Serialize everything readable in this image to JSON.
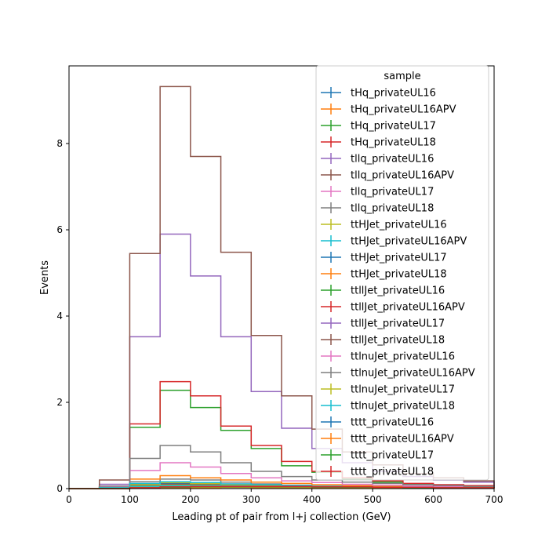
{
  "chart_data": {
    "type": "step-histogram",
    "xlabel": "Leading pt of pair from l+j collection (GeV)",
    "ylabel": "Events",
    "xlim": [
      0,
      700
    ],
    "ylim": [
      0,
      9.8
    ],
    "xticks": [
      "0",
      "100",
      "200",
      "300",
      "400",
      "500",
      "600",
      "700"
    ],
    "yticks": [
      "0",
      "2",
      "4",
      "6",
      "8"
    ],
    "grid": false,
    "legend": {
      "title": "sample",
      "placement": "top-right"
    },
    "bin_edges": [
      0,
      50,
      100,
      150,
      200,
      250,
      300,
      350,
      400,
      450,
      500,
      550,
      600,
      650,
      700
    ],
    "series": [
      {
        "name": "tHq_privateUL16",
        "color": "#1f77b4",
        "values": [
          0,
          0.01,
          0.03,
          0.04,
          0.04,
          0.03,
          0.02,
          0.02,
          0.01,
          0.01,
          0.01,
          0.005,
          0.005,
          0.005
        ]
      },
      {
        "name": "tHq_privateUL16APV",
        "color": "#ff7f0e",
        "values": [
          0,
          0.01,
          0.03,
          0.04,
          0.04,
          0.03,
          0.02,
          0.02,
          0.01,
          0.01,
          0.01,
          0.005,
          0.005,
          0.005
        ]
      },
      {
        "name": "tHq_privateUL17",
        "color": "#2ca02c",
        "values": [
          0,
          0.01,
          0.05,
          0.07,
          0.06,
          0.05,
          0.04,
          0.03,
          0.02,
          0.02,
          0.01,
          0.01,
          0.01,
          0.01
        ]
      },
      {
        "name": "tHq_privateUL18",
        "color": "#d62728",
        "values": [
          0,
          0.01,
          0.08,
          0.1,
          0.09,
          0.07,
          0.05,
          0.04,
          0.03,
          0.02,
          0.02,
          0.01,
          0.01,
          0.01
        ]
      },
      {
        "name": "tllq_privateUL16",
        "color": "#9467bd",
        "values": [
          0,
          0.02,
          0.1,
          0.13,
          0.12,
          0.09,
          0.07,
          0.05,
          0.04,
          0.03,
          0.02,
          0.02,
          0.01,
          0.01
        ]
      },
      {
        "name": "tllq_privateUL16APV",
        "color": "#8c564b",
        "values": [
          0,
          0.02,
          0.08,
          0.11,
          0.1,
          0.08,
          0.06,
          0.05,
          0.03,
          0.03,
          0.02,
          0.02,
          0.01,
          0.01
        ]
      },
      {
        "name": "tllq_privateUL17",
        "color": "#e377c2",
        "values": [
          0,
          0.03,
          0.12,
          0.16,
          0.14,
          0.11,
          0.08,
          0.06,
          0.05,
          0.04,
          0.03,
          0.02,
          0.02,
          0.01
        ]
      },
      {
        "name": "tllq_privateUL18",
        "color": "#7f7f7f",
        "values": [
          0,
          0.04,
          0.16,
          0.22,
          0.2,
          0.15,
          0.11,
          0.08,
          0.06,
          0.05,
          0.04,
          0.03,
          0.02,
          0.02
        ]
      },
      {
        "name": "ttHJet_privateUL16",
        "color": "#bcbd22",
        "values": [
          0,
          0.02,
          0.06,
          0.08,
          0.08,
          0.07,
          0.05,
          0.04,
          0.03,
          0.03,
          0.02,
          0.02,
          0.01,
          0.01
        ]
      },
      {
        "name": "ttHJet_privateUL16APV",
        "color": "#17becf",
        "values": [
          0,
          0.02,
          0.05,
          0.07,
          0.07,
          0.06,
          0.05,
          0.04,
          0.03,
          0.02,
          0.02,
          0.01,
          0.01,
          0.01
        ]
      },
      {
        "name": "ttHJet_privateUL17",
        "color": "#1f77b4",
        "values": [
          0,
          0.03,
          0.1,
          0.13,
          0.12,
          0.1,
          0.08,
          0.06,
          0.05,
          0.04,
          0.03,
          0.02,
          0.02,
          0.02
        ]
      },
      {
        "name": "ttHJet_privateUL18",
        "color": "#ff7f0e",
        "values": [
          0,
          0.04,
          0.22,
          0.3,
          0.25,
          0.2,
          0.15,
          0.12,
          0.09,
          0.07,
          0.05,
          0.04,
          0.03,
          0.03
        ]
      },
      {
        "name": "ttllJet_privateUL16",
        "color": "#2ca02c",
        "values": [
          0,
          0.05,
          1.42,
          2.28,
          1.88,
          1.35,
          0.93,
          0.53,
          0.38,
          0.22,
          0.15,
          0.1,
          0.08,
          0.06
        ]
      },
      {
        "name": "ttllJet_privateUL16APV",
        "color": "#d62728",
        "values": [
          0,
          0.06,
          1.5,
          2.48,
          2.15,
          1.45,
          1.0,
          0.63,
          0.4,
          0.25,
          0.18,
          0.12,
          0.09,
          0.07
        ]
      },
      {
        "name": "ttllJet_privateUL17",
        "color": "#9467bd",
        "values": [
          0,
          0.1,
          3.52,
          5.9,
          4.93,
          3.52,
          2.25,
          1.4,
          0.93,
          0.6,
          0.4,
          0.28,
          0.2,
          0.15
        ]
      },
      {
        "name": "ttllJet_privateUL18",
        "color": "#8c564b",
        "values": [
          0,
          0.2,
          5.45,
          9.32,
          7.7,
          5.48,
          3.55,
          2.15,
          1.38,
          0.85,
          0.55,
          0.35,
          0.25,
          0.18
        ]
      },
      {
        "name": "ttlnuJet_privateUL16",
        "color": "#e377c2",
        "values": [
          0,
          0.04,
          0.42,
          0.6,
          0.5,
          0.35,
          0.25,
          0.18,
          0.14,
          0.1,
          0.08,
          0.06,
          0.05,
          0.04
        ]
      },
      {
        "name": "ttlnuJet_privateUL16APV",
        "color": "#7f7f7f",
        "values": [
          0,
          0.06,
          0.7,
          1.0,
          0.85,
          0.6,
          0.4,
          0.28,
          0.2,
          0.15,
          0.12,
          0.09,
          0.07,
          0.05
        ]
      },
      {
        "name": "ttlnuJet_privateUL17",
        "color": "#bcbd22",
        "values": [
          0,
          0.02,
          0.1,
          0.14,
          0.12,
          0.1,
          0.08,
          0.06,
          0.05,
          0.04,
          0.03,
          0.03,
          0.02,
          0.02
        ]
      },
      {
        "name": "ttlnuJet_privateUL18",
        "color": "#17becf",
        "values": [
          0,
          0.02,
          0.12,
          0.16,
          0.14,
          0.11,
          0.09,
          0.07,
          0.05,
          0.04,
          0.03,
          0.03,
          0.02,
          0.02
        ]
      },
      {
        "name": "tttt_privateUL16",
        "color": "#1f77b4",
        "values": [
          0,
          0.0,
          0.01,
          0.02,
          0.02,
          0.03,
          0.03,
          0.03,
          0.02,
          0.02,
          0.02,
          0.02,
          0.01,
          0.01
        ]
      },
      {
        "name": "tttt_privateUL16APV",
        "color": "#ff7f0e",
        "values": [
          0,
          0.0,
          0.01,
          0.02,
          0.02,
          0.03,
          0.03,
          0.03,
          0.02,
          0.02,
          0.02,
          0.02,
          0.01,
          0.01
        ]
      },
      {
        "name": "tttt_privateUL17",
        "color": "#2ca02c",
        "values": [
          0,
          0.0,
          0.02,
          0.03,
          0.04,
          0.04,
          0.04,
          0.04,
          0.03,
          0.03,
          0.03,
          0.02,
          0.02,
          0.02
        ]
      },
      {
        "name": "tttt_privateUL18",
        "color": "#d62728",
        "values": [
          0,
          0.0,
          0.02,
          0.04,
          0.05,
          0.05,
          0.05,
          0.05,
          0.04,
          0.04,
          0.03,
          0.03,
          0.02,
          0.02
        ]
      }
    ]
  }
}
